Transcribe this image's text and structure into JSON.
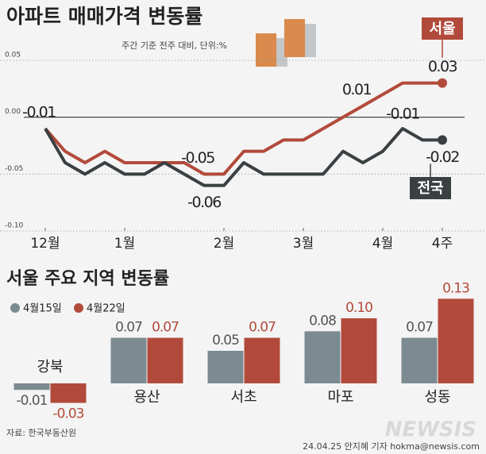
{
  "chart_data": [
    {
      "type": "line",
      "title": "아파트 매매가격 변동률",
      "subtitle": "주간 기준 전주 대비, 단위:%",
      "categories": [
        "12월",
        null,
        null,
        null,
        "1월",
        null,
        null,
        null,
        null,
        "2월",
        null,
        null,
        null,
        "3월",
        null,
        null,
        null,
        "4월",
        null,
        null,
        "4주"
      ],
      "ylim": [
        -0.1,
        0.05
      ],
      "yticks": [
        0.05,
        {
          "value": 0,
          "label": "0.00"
        },
        -0.05,
        {
          "value": -0.1,
          "label": "-0.10"
        }
      ],
      "grid": true,
      "series": [
        {
          "name": "서울",
          "color": "#b24a3b",
          "values": [
            -0.01,
            -0.03,
            -0.04,
            -0.03,
            -0.04,
            -0.04,
            -0.04,
            -0.04,
            -0.05,
            -0.05,
            -0.03,
            -0.03,
            -0.02,
            -0.02,
            -0.01,
            0.0,
            0.01,
            0.02,
            0.03,
            0.03,
            0.03
          ],
          "value_labels": [
            "-0.01",
            null,
            null,
            null,
            null,
            null,
            null,
            null,
            "-0.05",
            null,
            null,
            null,
            null,
            null,
            null,
            null,
            "0.01",
            null,
            null,
            null,
            "0.03"
          ]
        },
        {
          "name": "전국",
          "color": "#3a3f42",
          "values": [
            -0.01,
            -0.04,
            -0.05,
            -0.04,
            -0.05,
            -0.05,
            -0.04,
            -0.05,
            -0.06,
            -0.06,
            -0.04,
            -0.05,
            -0.05,
            -0.05,
            -0.05,
            -0.03,
            -0.04,
            -0.03,
            -0.01,
            -0.02,
            -0.02
          ],
          "value_labels": [
            null,
            null,
            null,
            null,
            null,
            null,
            null,
            null,
            "-0.06",
            null,
            null,
            null,
            null,
            null,
            null,
            null,
            null,
            null,
            "-0.01",
            null,
            "-0.02"
          ]
        }
      ]
    },
    {
      "type": "bar",
      "title": "서울 주요 지역 변동률",
      "categories": [
        "강북",
        "용산",
        "서초",
        "마포",
        "성동"
      ],
      "series": [
        {
          "name": "4월15일",
          "color": "#7c8a92",
          "values": [
            -0.01,
            0.07,
            0.05,
            0.08,
            0.07
          ],
          "value_labels": [
            "-0.01",
            "0.07",
            "0.05",
            "0.08",
            "0.07"
          ]
        },
        {
          "name": "4월22일",
          "color": "#b24a3b",
          "values": [
            -0.03,
            0.07,
            0.07,
            0.1,
            0.13
          ],
          "value_labels": [
            "-0.03",
            "0.07",
            "0.07",
            "0.10",
            "0.13"
          ]
        }
      ]
    }
  ],
  "source": "자료: 한국부동산원",
  "credit": "24.04.25 안지혜 기자 hokma@newsis.com",
  "watermark": "NEWSIS"
}
